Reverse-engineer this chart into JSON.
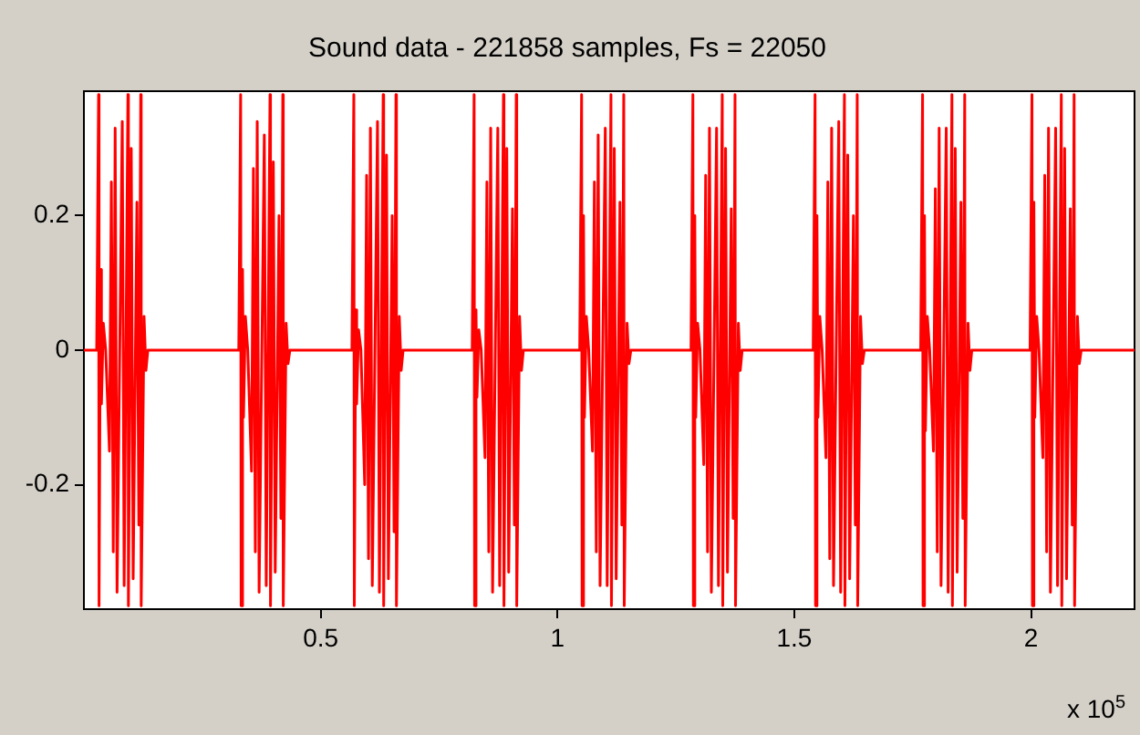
{
  "chart_data": {
    "type": "line",
    "title": "Sound data - 221858 samples, Fs = 22050",
    "xlim": [
      0,
      2.21858
    ],
    "ylim": [
      -0.385,
      0.385
    ],
    "xticks": [
      0.5,
      1,
      1.5,
      2
    ],
    "yticks": [
      -0.2,
      0,
      0.2
    ],
    "annotations": [
      "x 10$^{5}$"
    ],
    "grid": false,
    "legend": false,
    "marker": "none",
    "line_style": "solid",
    "series": [
      {
        "color": "#ff0000",
        "x": [
          0,
          0.027,
          0.031,
          0.032,
          0.035,
          0.037,
          0.041,
          0.046,
          0.054,
          0.058,
          0.062,
          0.066,
          0.07,
          0.081,
          0.085,
          0.093,
          0.094,
          0.1,
          0.104,
          0.112,
          0.116,
          0.12,
          0.121,
          0.127,
          0.131,
          0.135,
          0.327,
          0.331,
          0.332,
          0.335,
          0.337,
          0.341,
          0.346,
          0.354,
          0.358,
          0.362,
          0.366,
          0.37,
          0.381,
          0.385,
          0.393,
          0.394,
          0.4,
          0.404,
          0.412,
          0.416,
          0.42,
          0.421,
          0.427,
          0.431,
          0.435,
          0.566,
          0.57,
          0.571,
          0.574,
          0.576,
          0.58,
          0.585,
          0.593,
          0.597,
          0.601,
          0.605,
          0.609,
          0.62,
          0.624,
          0.632,
          0.633,
          0.639,
          0.643,
          0.651,
          0.655,
          0.659,
          0.66,
          0.666,
          0.67,
          0.674,
          0.82,
          0.824,
          0.825,
          0.828,
          0.83,
          0.834,
          0.839,
          0.847,
          0.851,
          0.855,
          0.859,
          0.863,
          0.874,
          0.878,
          0.886,
          0.887,
          0.893,
          0.897,
          0.905,
          0.909,
          0.913,
          0.914,
          0.92,
          0.924,
          0.928,
          1.047,
          1.051,
          1.052,
          1.055,
          1.057,
          1.061,
          1.066,
          1.074,
          1.078,
          1.082,
          1.086,
          1.09,
          1.101,
          1.105,
          1.113,
          1.114,
          1.12,
          1.124,
          1.132,
          1.136,
          1.14,
          1.141,
          1.147,
          1.151,
          1.155,
          1.282,
          1.286,
          1.287,
          1.29,
          1.292,
          1.296,
          1.301,
          1.309,
          1.313,
          1.317,
          1.321,
          1.325,
          1.336,
          1.34,
          1.348,
          1.349,
          1.355,
          1.359,
          1.367,
          1.371,
          1.375,
          1.376,
          1.382,
          1.386,
          1.39,
          1.54,
          1.544,
          1.545,
          1.548,
          1.55,
          1.554,
          1.559,
          1.567,
          1.571,
          1.575,
          1.579,
          1.583,
          1.594,
          1.598,
          1.606,
          1.607,
          1.613,
          1.617,
          1.625,
          1.629,
          1.633,
          1.634,
          1.64,
          1.644,
          1.648,
          1.767,
          1.771,
          1.772,
          1.775,
          1.777,
          1.781,
          1.786,
          1.794,
          1.798,
          1.802,
          1.806,
          1.81,
          1.821,
          1.825,
          1.833,
          1.834,
          1.84,
          1.844,
          1.852,
          1.856,
          1.86,
          1.861,
          1.867,
          1.871,
          1.875,
          1.998,
          2.002,
          2.003,
          2.006,
          2.008,
          2.012,
          2.017,
          2.025,
          2.029,
          2.033,
          2.037,
          2.041,
          2.052,
          2.056,
          2.064,
          2.065,
          2.071,
          2.075,
          2.083,
          2.087,
          2.091,
          2.092,
          2.098,
          2.102,
          2.106,
          2.21858
        ],
        "values": [
          0,
          0,
          0.38,
          -0.38,
          0.12,
          -0.08,
          0.04,
          0,
          -0.15,
          0.25,
          -0.3,
          0.33,
          -0.36,
          0.34,
          -0.35,
          0.38,
          -0.38,
          0.3,
          -0.34,
          0.22,
          -0.26,
          0.38,
          -0.38,
          0.05,
          -0.03,
          0,
          0,
          0.38,
          -0.38,
          0.12,
          -0.1,
          0.05,
          0,
          -0.18,
          0.27,
          -0.3,
          0.34,
          -0.36,
          0.32,
          -0.35,
          0.38,
          -0.38,
          0.28,
          -0.33,
          0.2,
          -0.25,
          0.38,
          -0.38,
          0.04,
          -0.02,
          0,
          0,
          0.38,
          -0.38,
          0.06,
          -0.08,
          0.03,
          0,
          -0.2,
          0.26,
          -0.31,
          0.33,
          -0.35,
          0.34,
          -0.36,
          0.38,
          -0.38,
          0.29,
          -0.34,
          0.2,
          -0.27,
          0.38,
          -0.38,
          0.05,
          -0.03,
          0,
          0,
          0.38,
          -0.38,
          0.06,
          -0.07,
          0.03,
          0,
          -0.16,
          0.25,
          -0.3,
          0.33,
          -0.36,
          0.33,
          -0.35,
          0.38,
          -0.38,
          0.3,
          -0.33,
          0.21,
          -0.26,
          0.38,
          -0.38,
          0.05,
          -0.03,
          0,
          0,
          0.38,
          -0.38,
          0.2,
          -0.1,
          0.05,
          0,
          -0.15,
          0.25,
          -0.3,
          0.32,
          -0.35,
          0.33,
          -0.35,
          0.38,
          -0.38,
          0.3,
          -0.34,
          0.22,
          -0.26,
          0.38,
          -0.38,
          0.04,
          -0.02,
          0,
          0,
          0.38,
          -0.38,
          0.2,
          -0.1,
          0.04,
          0,
          -0.17,
          0.26,
          -0.3,
          0.33,
          -0.36,
          0.33,
          -0.35,
          0.38,
          -0.38,
          0.3,
          -0.33,
          0.21,
          -0.25,
          0.38,
          -0.38,
          0.04,
          -0.03,
          0,
          0,
          0.38,
          -0.38,
          0.2,
          -0.1,
          0.05,
          0,
          -0.16,
          0.25,
          -0.31,
          0.33,
          -0.35,
          0.34,
          -0.36,
          0.38,
          -0.38,
          0.29,
          -0.34,
          0.2,
          -0.26,
          0.38,
          -0.38,
          0.05,
          -0.02,
          0,
          0,
          0.38,
          -0.38,
          0.2,
          -0.12,
          0.05,
          0,
          -0.15,
          0.24,
          -0.3,
          0.33,
          -0.35,
          0.33,
          -0.36,
          0.38,
          -0.38,
          0.3,
          -0.33,
          0.22,
          -0.25,
          0.38,
          -0.38,
          0.04,
          -0.03,
          0,
          0,
          0.38,
          -0.38,
          0.22,
          -0.1,
          0.05,
          0,
          -0.16,
          0.26,
          -0.3,
          0.33,
          -0.36,
          0.33,
          -0.35,
          0.38,
          -0.38,
          0.3,
          -0.34,
          0.21,
          -0.26,
          0.38,
          -0.38,
          0.05,
          -0.02,
          0,
          0
        ]
      }
    ]
  }
}
